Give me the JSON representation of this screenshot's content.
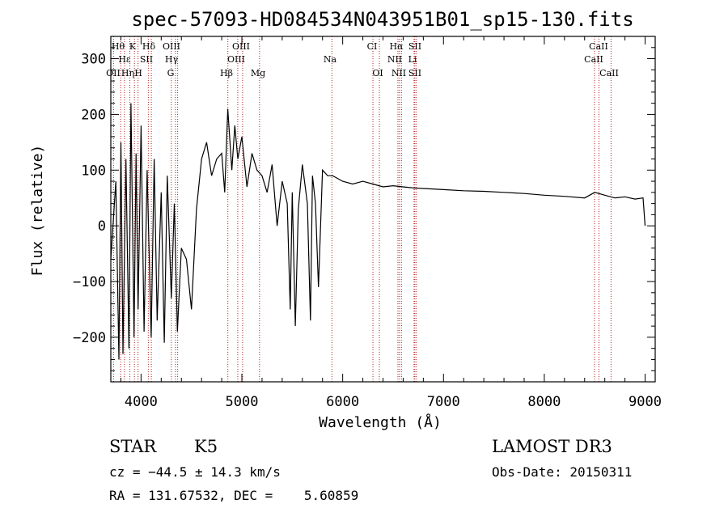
{
  "chart_data": {
    "type": "line",
    "title": "spec-57093-HD084534N043951B01_sp15-130.fits",
    "xlabel": "Wavelength (Å)",
    "ylabel": "Flux (relative)",
    "xlim": [
      3700,
      9100
    ],
    "ylim": [
      -280,
      340
    ],
    "xticks": [
      4000,
      5000,
      6000,
      7000,
      8000,
      9000
    ],
    "xtick_labels": [
      "4000",
      "5000",
      "6000",
      "7000",
      "8000",
      "9000"
    ],
    "yticks": [
      -200,
      -100,
      0,
      100,
      200,
      300
    ],
    "ytick_labels": [
      "−200",
      "−100",
      "0",
      "100",
      "200",
      "300"
    ],
    "series": [
      {
        "name": "flux",
        "x": [
          3700,
          3750,
          3780,
          3800,
          3820,
          3850,
          3880,
          3900,
          3930,
          3950,
          3970,
          4000,
          4030,
          4060,
          4100,
          4130,
          4160,
          4200,
          4230,
          4260,
          4300,
          4330,
          4360,
          4400,
          4450,
          4500,
          4550,
          4600,
          4650,
          4700,
          4750,
          4800,
          4830,
          4860,
          4900,
          4930,
          4960,
          5000,
          5050,
          5100,
          5150,
          5200,
          5250,
          5300,
          5350,
          5400,
          5450,
          5480,
          5500,
          5530,
          5560,
          5600,
          5650,
          5680,
          5700,
          5730,
          5760,
          5800,
          5850,
          5900,
          5950,
          6000,
          6100,
          6200,
          6300,
          6400,
          6500,
          6600,
          6700,
          6800,
          7000,
          7200,
          7400,
          7600,
          7800,
          8000,
          8200,
          8400,
          8500,
          8600,
          8700,
          8800,
          8900,
          8980,
          9000
        ],
        "y": [
          -60,
          80,
          -240,
          150,
          -230,
          120,
          -220,
          220,
          -200,
          130,
          -150,
          180,
          -190,
          100,
          -200,
          120,
          -170,
          60,
          -210,
          90,
          -130,
          40,
          -190,
          -40,
          -60,
          -150,
          30,
          120,
          150,
          90,
          120,
          130,
          60,
          210,
          100,
          180,
          120,
          160,
          70,
          130,
          100,
          90,
          60,
          110,
          0,
          80,
          40,
          -150,
          60,
          -180,
          30,
          110,
          40,
          -170,
          90,
          40,
          -110,
          100,
          90,
          90,
          85,
          80,
          75,
          80,
          75,
          70,
          72,
          70,
          68,
          67,
          65,
          63,
          62,
          60,
          58,
          55,
          53,
          50,
          60,
          55,
          50,
          52,
          48,
          50,
          0
        ]
      }
    ],
    "lines_top_row": [
      "Hθ",
      "K",
      "Hδ",
      "OIII",
      "OIII",
      "CI",
      "Hα",
      "SII",
      "CaII"
    ],
    "lines_mid_row": [
      "Hε",
      "SII",
      "Hγ",
      "OIII",
      "Na",
      "NII",
      "Li",
      "CaII"
    ],
    "lines_bot_row": [
      "OII",
      "Hη",
      "H",
      "G",
      "Hβ",
      "Mg",
      "OI",
      "NII",
      "SII",
      "CaII"
    ],
    "line_markers": [
      3727,
      3798,
      3835,
      3889,
      3934,
      3970,
      4072,
      4102,
      4300,
      4341,
      4363,
      4861,
      4959,
      5007,
      5175,
      5893,
      6300,
      6364,
      6548,
      6563,
      6583,
      6708,
      6716,
      6731,
      8498,
      8542,
      8662
    ]
  },
  "footer": {
    "object_type": "STAR",
    "subclass": "K5",
    "survey": "LAMOST DR3",
    "cz": "cz = −44.5 ± 14.3 km/s",
    "obs_date": "Obs-Date: 20150311",
    "coords": "RA = 131.67532, DEC =    5.60859"
  },
  "colors": {
    "line_marker": "#b22222",
    "spectrum": "#000000"
  }
}
